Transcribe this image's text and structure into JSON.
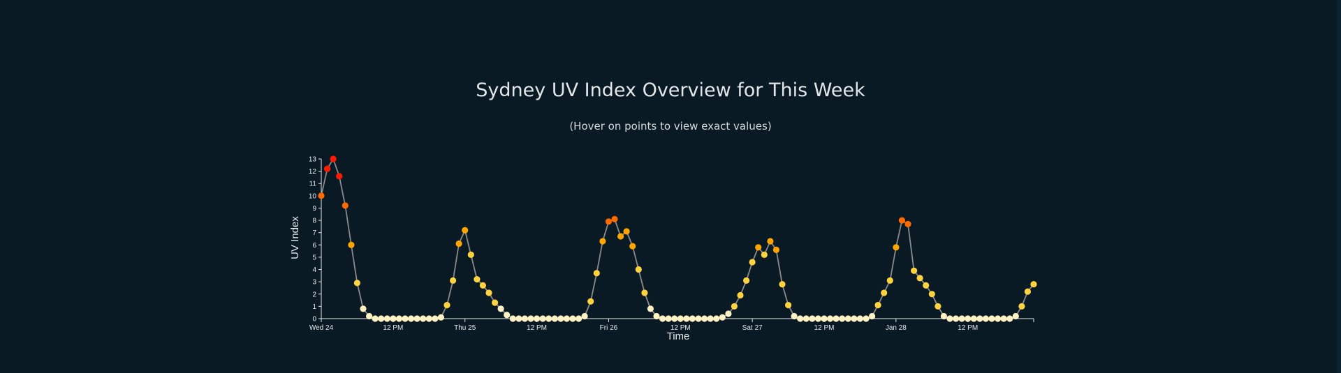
{
  "chart_data": {
    "type": "line",
    "title": "Sydney UV Index Overview for This Week",
    "subtitle": "(Hover on points to view exact values)",
    "xlabel": "Time",
    "ylabel": "UV Index",
    "ylim": [
      0,
      13
    ],
    "y_ticks": [
      "0",
      "1",
      "2",
      "3",
      "4",
      "5",
      "6",
      "7",
      "8",
      "9",
      "10",
      "11",
      "12",
      "13"
    ],
    "x_ticks": [
      {
        "label": "Wed 24",
        "hour": 0
      },
      {
        "label": "12 PM",
        "hour": 12
      },
      {
        "label": "Thu 25",
        "hour": 24
      },
      {
        "label": "12 PM",
        "hour": 36
      },
      {
        "label": "Fri 26",
        "hour": 48
      },
      {
        "label": "12 PM",
        "hour": 60
      },
      {
        "label": "Sat 27",
        "hour": 72
      },
      {
        "label": "12 PM",
        "hour": 84
      },
      {
        "label": "Jan 28",
        "hour": 96
      },
      {
        "label": "12 PM",
        "hour": 108
      }
    ],
    "x_range_hours": [
      0,
      119
    ],
    "line_color": "#8a8a8a",
    "grid": false,
    "point_colors": {
      "low": "#fff3c4",
      "moderate": "#ffd23f",
      "high": "#ffa500",
      "very_high": "#ff6a00",
      "extreme": "#ff1a00"
    },
    "series": [
      {
        "values": [
          10.0,
          12.2,
          13.0,
          11.6,
          9.2,
          6.0,
          2.9,
          0.8,
          0.2,
          0,
          0,
          0,
          0,
          0,
          0,
          0,
          0,
          0,
          0,
          0,
          0.1,
          1.1,
          3.1,
          6.1,
          7.2,
          5.2,
          3.2,
          2.7,
          2.1,
          1.3,
          0.8,
          0.3,
          0,
          0,
          0,
          0,
          0,
          0,
          0,
          0,
          0,
          0,
          0,
          0,
          0.2,
          1.4,
          3.7,
          6.3,
          7.9,
          8.1,
          6.7,
          7.1,
          5.9,
          4.0,
          2.1,
          0.8,
          0.2,
          0,
          0,
          0,
          0,
          0,
          0,
          0,
          0,
          0,
          0,
          0.1,
          0.4,
          1.0,
          1.9,
          3.1,
          4.6,
          5.8,
          5.2,
          6.3,
          5.6,
          2.8,
          1.1,
          0.2,
          0,
          0,
          0,
          0,
          0,
          0,
          0,
          0,
          0,
          0,
          0,
          0,
          0.2,
          1.1,
          2.1,
          3.1,
          5.8,
          8.0,
          7.7,
          3.9,
          3.3,
          2.7,
          2.0,
          1.0,
          0.2,
          0,
          0,
          0,
          0,
          0,
          0,
          0,
          0,
          0,
          0,
          0,
          0.2,
          1.0,
          2.2,
          2.8
        ]
      }
    ]
  }
}
